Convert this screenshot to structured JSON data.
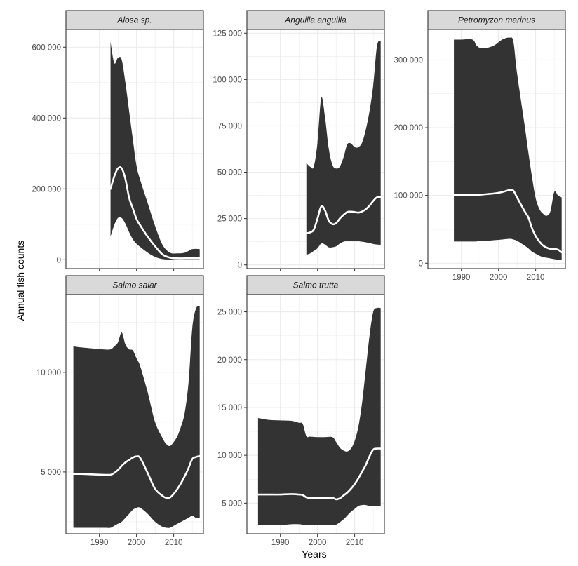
{
  "chart_data": {
    "type": "area",
    "xlabel": "Years",
    "ylabel": "Annual fish counts",
    "colors": {
      "ribbon": "#333333",
      "line": "#ffffff",
      "strip_fill": "#d9d9d9",
      "panel_border": "#333333",
      "grid": "#ebebeb"
    },
    "panels": [
      {
        "name": "Alosa sp.",
        "xlim": [
          1981,
          2018
        ],
        "ylim": [
          -25000,
          650000
        ],
        "xticks": [
          1990,
          2000,
          2010
        ],
        "xtick_labels": [
          "",
          "",
          ""
        ],
        "yticks": [
          0,
          200000,
          400000,
          600000
        ],
        "ytick_labels": [
          "0",
          "200 000",
          "400 000",
          "600 000"
        ],
        "series": {
          "x": [
            1993,
            1994,
            1995,
            1996,
            1997,
            1998,
            1999,
            2000,
            2001,
            2003,
            2005,
            2007,
            2009,
            2011,
            2013,
            2015,
            2017
          ],
          "upper": [
            615000,
            555000,
            570000,
            565000,
            500000,
            420000,
            340000,
            265000,
            225000,
            160000,
            95000,
            42000,
            20000,
            18000,
            20000,
            30000,
            30000
          ],
          "lower": [
            65000,
            98000,
            118000,
            118000,
            102000,
            78000,
            58000,
            45000,
            36000,
            20000,
            8000,
            2000,
            500,
            300,
            300,
            300,
            300
          ],
          "mean": [
            200000,
            235000,
            258000,
            258000,
            228000,
            175000,
            145000,
            115000,
            97000,
            65000,
            38000,
            15000,
            6000,
            4000,
            4000,
            4000,
            4000
          ]
        }
      },
      {
        "name": "Anguilla anguilla",
        "xlim": [
          1981,
          2018
        ],
        "ylim": [
          -2000,
          127000
        ],
        "xticks": [
          1990,
          2000,
          2010
        ],
        "xtick_labels": [
          "",
          "",
          ""
        ],
        "yticks": [
          0,
          25000,
          50000,
          75000,
          100000,
          125000
        ],
        "ytick_labels": [
          "0",
          "25 000",
          "50 000",
          "75 000",
          "100 000",
          "125 000"
        ],
        "series": {
          "x": [
            1997,
            1998,
            1999,
            2000,
            2001,
            2002,
            2003,
            2004,
            2005,
            2006,
            2007,
            2008,
            2009,
            2010,
            2011,
            2012,
            2013,
            2014,
            2015,
            2016,
            2017
          ],
          "upper": [
            55000,
            53000,
            53000,
            66000,
            90000,
            80000,
            63000,
            54000,
            52000,
            53000,
            58000,
            65000,
            65500,
            63500,
            63500,
            66000,
            73000,
            83000,
            97000,
            118000,
            121000
          ],
          "lower": [
            5500,
            6200,
            7500,
            9000,
            11500,
            11000,
            9500,
            9500,
            10000,
            11500,
            12500,
            13000,
            13000,
            13000,
            12800,
            12500,
            12200,
            11800,
            11300,
            11000,
            10800
          ],
          "mean": [
            17000,
            17500,
            19000,
            25000,
            31500,
            29500,
            24000,
            22000,
            22500,
            25000,
            27000,
            28500,
            28700,
            28500,
            28200,
            28800,
            30000,
            32000,
            34500,
            36500,
            36500
          ]
        }
      },
      {
        "name": "Petromyzon marinus",
        "xlim": [
          1981,
          2018
        ],
        "ylim": [
          -8000,
          345000
        ],
        "xticks": [
          1990,
          2000,
          2010
        ],
        "xtick_labels": [
          "1990",
          "2000",
          "2010"
        ],
        "yticks": [
          0,
          100000,
          200000,
          300000
        ],
        "ytick_labels": [
          "0",
          "100 000",
          "200 000",
          "300 000"
        ],
        "series": {
          "x": [
            1988,
            1990,
            1993,
            1994,
            1995,
            1997,
            1999,
            2001,
            2003,
            2004,
            2005,
            2007,
            2008,
            2009,
            2010,
            2011,
            2012,
            2013,
            2014,
            2015,
            2016,
            2017
          ],
          "upper": [
            330000,
            330000,
            330000,
            322000,
            318000,
            318000,
            322000,
            330000,
            333000,
            327000,
            280000,
            205000,
            165000,
            128000,
            96000,
            80000,
            73000,
            70000,
            77000,
            105000,
            100000,
            97000
          ],
          "lower": [
            32000,
            32000,
            32000,
            32000,
            33000,
            33000,
            34000,
            35000,
            36000,
            35000,
            33000,
            26000,
            22000,
            17000,
            14000,
            11000,
            9000,
            8000,
            7000,
            6000,
            5000,
            4500
          ],
          "mean": [
            101000,
            101000,
            101000,
            101000,
            101000,
            102000,
            103000,
            105000,
            108000,
            107000,
            97000,
            77000,
            68000,
            52000,
            40000,
            32000,
            26000,
            23000,
            21000,
            21000,
            20000,
            16000
          ]
        }
      },
      {
        "name": "Salmo salar",
        "xlim": [
          1981,
          2018
        ],
        "ylim": [
          1900,
          13900
        ],
        "xticks": [
          1990,
          2000,
          2010
        ],
        "xtick_labels": [
          "1990",
          "2000",
          "2010"
        ],
        "yticks": [
          5000,
          10000
        ],
        "ytick_labels": [
          "5 000",
          "10 000"
        ],
        "series": {
          "x": [
            1983,
            1985,
            1988,
            1991,
            1993,
            1994,
            1995,
            1996,
            1997,
            1998,
            1999,
            2000,
            2001,
            2003,
            2005,
            2007,
            2008,
            2009,
            2010,
            2011,
            2012,
            2013,
            2014,
            2015,
            2016,
            2017
          ],
          "upper": [
            11300,
            11250,
            11200,
            11150,
            11150,
            11300,
            11500,
            12000,
            11400,
            11150,
            11100,
            10700,
            10300,
            9000,
            7500,
            6700,
            6400,
            6300,
            6500,
            6800,
            7300,
            8000,
            9500,
            12200,
            13200,
            13300
          ],
          "lower": [
            2200,
            2200,
            2200,
            2200,
            2200,
            2300,
            2400,
            2500,
            2700,
            2900,
            3100,
            3200,
            3200,
            2900,
            2500,
            2250,
            2200,
            2200,
            2300,
            2400,
            2500,
            2600,
            2700,
            2800,
            2700,
            2700
          ],
          "mean": [
            4900,
            4900,
            4880,
            4860,
            4860,
            4950,
            5100,
            5300,
            5480,
            5600,
            5720,
            5780,
            5700,
            4950,
            4150,
            3800,
            3700,
            3720,
            3900,
            4150,
            4450,
            4800,
            5200,
            5650,
            5750,
            5800
          ]
        }
      },
      {
        "name": "Salmo trutta",
        "xlim": [
          1981,
          2018
        ],
        "ylim": [
          1800,
          26800
        ],
        "xticks": [
          1990,
          2000,
          2010
        ],
        "xtick_labels": [
          "1990",
          "2000",
          "2010"
        ],
        "yticks": [
          5000,
          10000,
          15000,
          20000,
          25000
        ],
        "ytick_labels": [
          "5 000",
          "10 000",
          "15 000",
          "20 000",
          "25 000"
        ],
        "series": {
          "x": [
            1984,
            1987,
            1990,
            1993,
            1995,
            1996,
            1997,
            1998,
            2000,
            2002,
            2004,
            2005,
            2006,
            2007,
            2008,
            2009,
            2010,
            2011,
            2012,
            2013,
            2014,
            2015,
            2016,
            2017
          ],
          "upper": [
            13900,
            13700,
            13650,
            13600,
            13400,
            13300,
            12000,
            11950,
            11900,
            11900,
            11900,
            11400,
            10800,
            10500,
            10400,
            10700,
            11500,
            13000,
            15500,
            19000,
            22500,
            25000,
            25400,
            25400
          ],
          "lower": [
            2700,
            2700,
            2700,
            2800,
            2800,
            2750,
            2700,
            2700,
            2700,
            2700,
            2700,
            2750,
            3000,
            3300,
            3700,
            4100,
            4400,
            4700,
            4800,
            4800,
            4700,
            4700,
            4700,
            4700
          ],
          "mean": [
            5900,
            5900,
            5900,
            5950,
            5900,
            5850,
            5600,
            5550,
            5550,
            5550,
            5550,
            5400,
            5500,
            5800,
            6100,
            6500,
            7000,
            7600,
            8300,
            9000,
            9900,
            10600,
            10700,
            10700
          ]
        }
      }
    ]
  }
}
